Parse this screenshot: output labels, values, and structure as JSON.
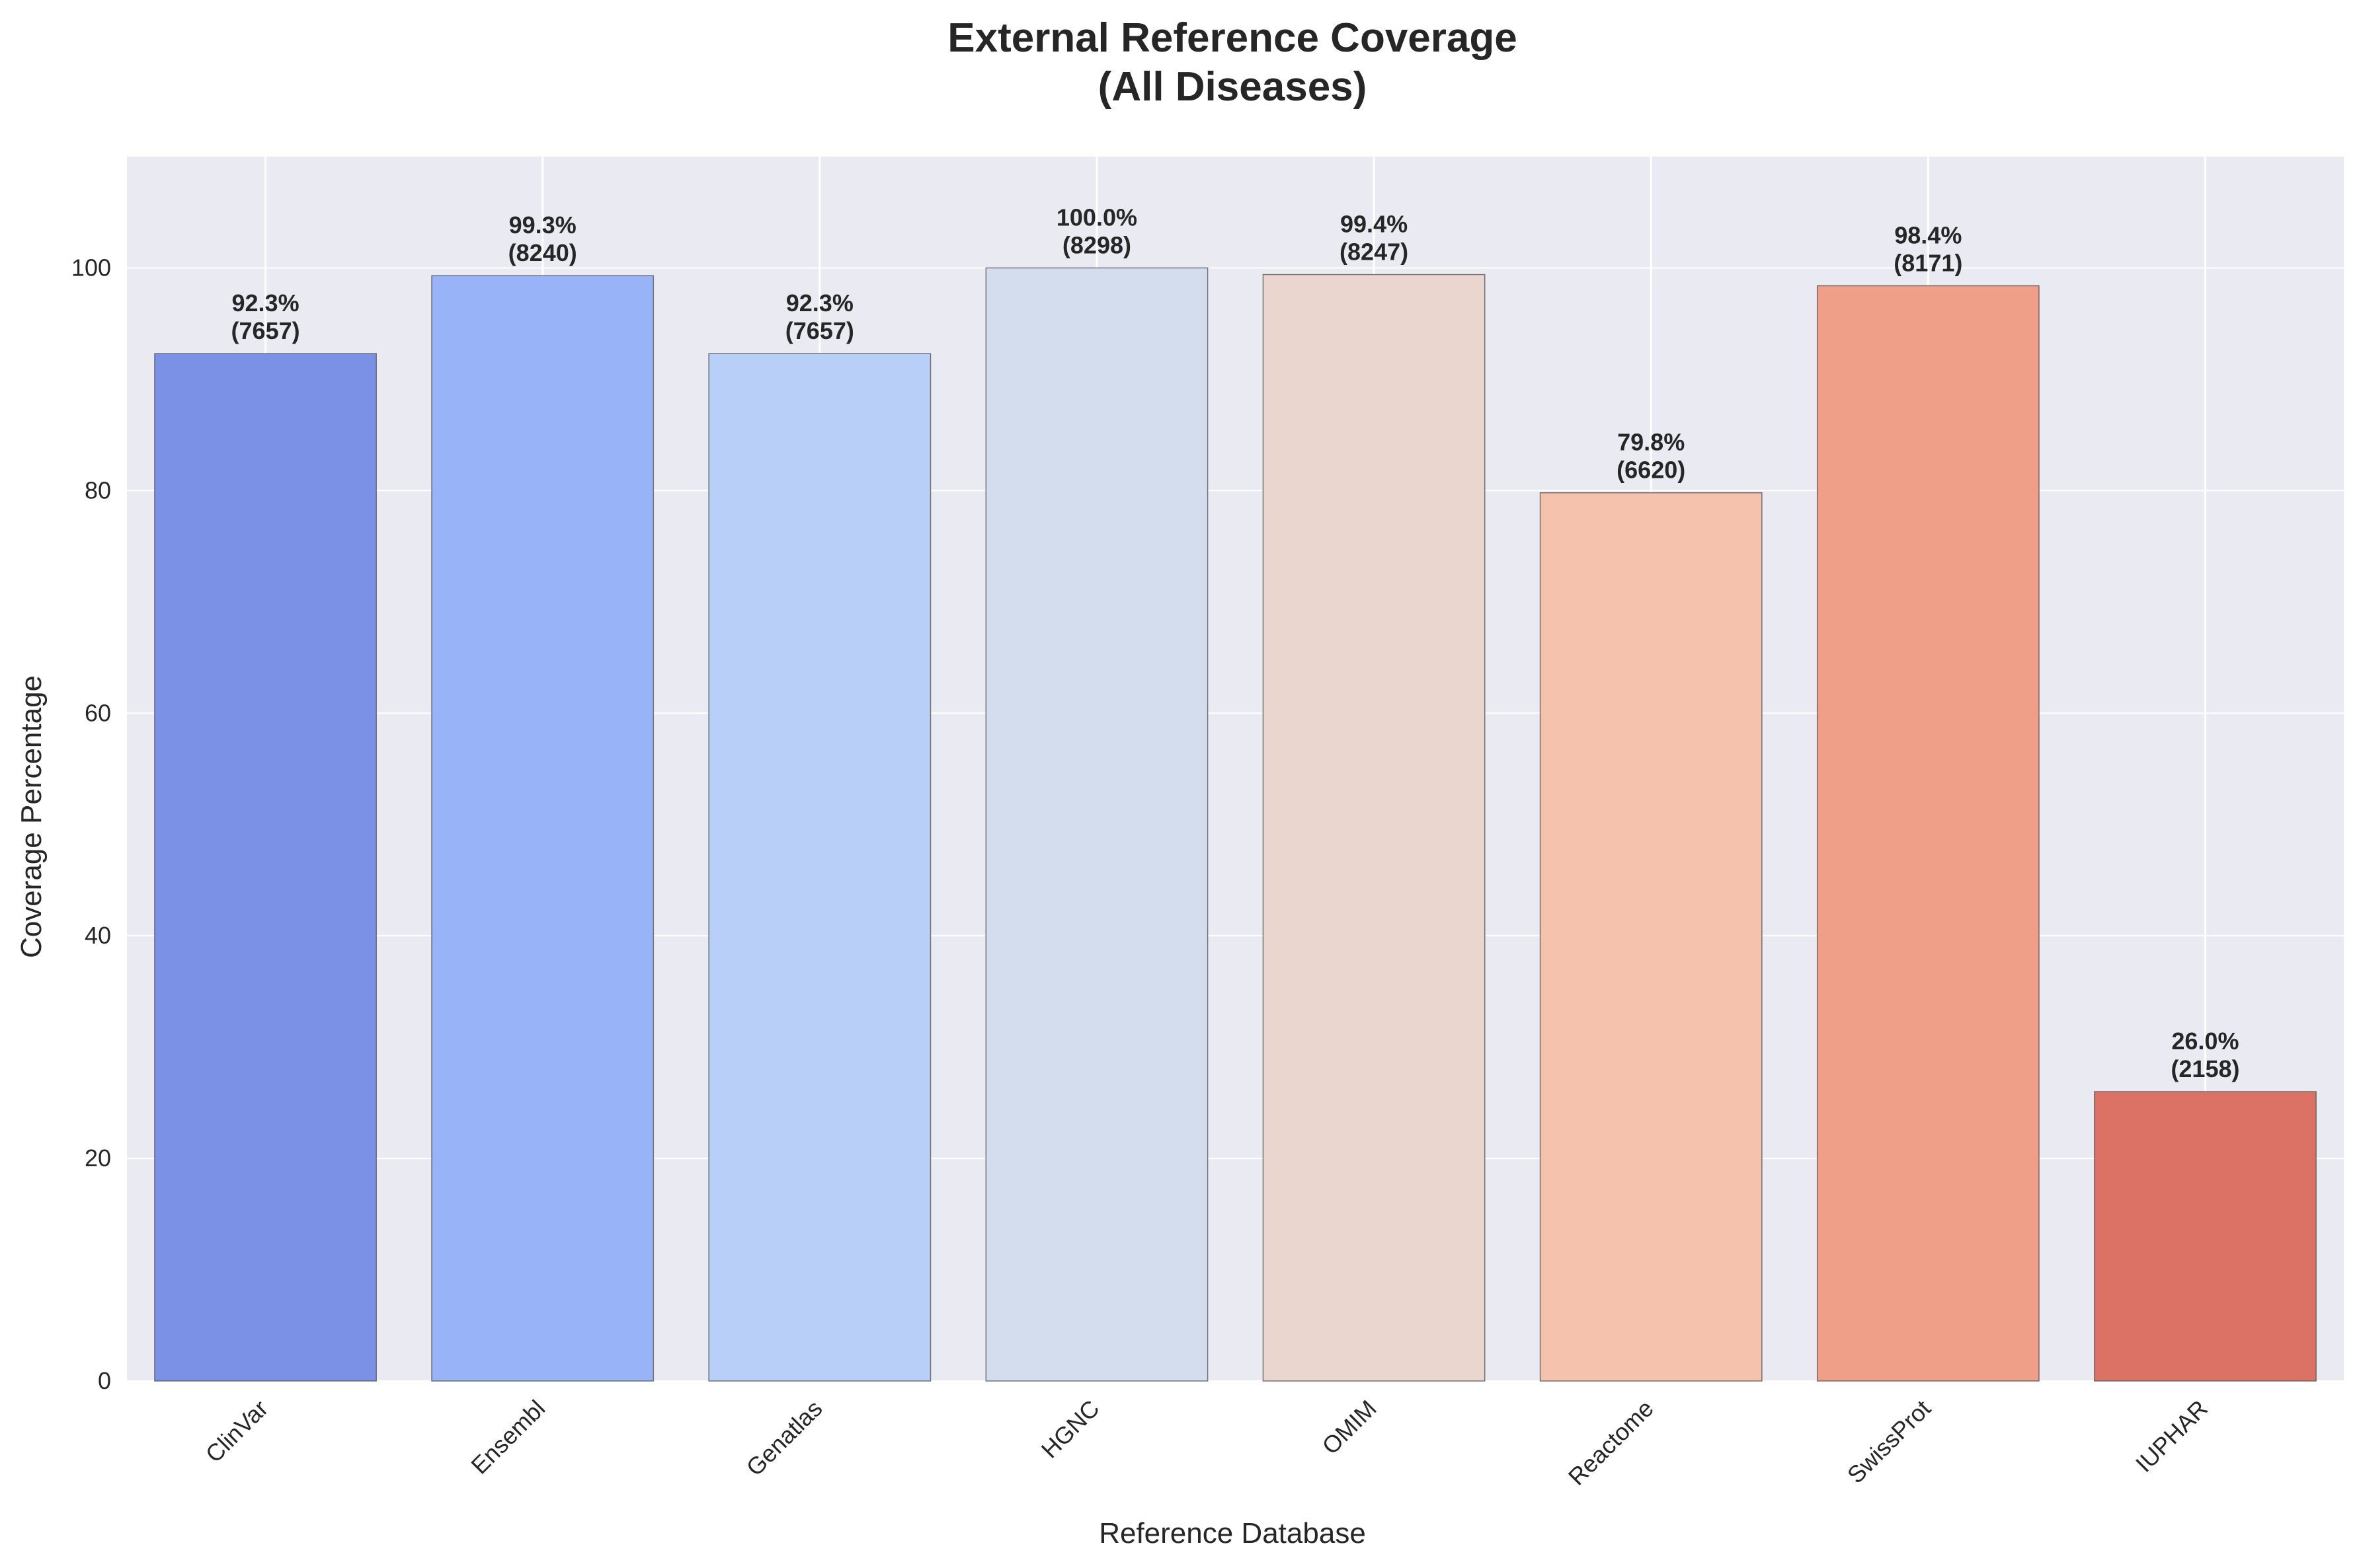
{
  "chart_data": {
    "type": "bar",
    "title_lines": [
      "External Reference Coverage",
      "(All Diseases)"
    ],
    "xlabel": "Reference Database",
    "ylabel": "Coverage Percentage",
    "ylim": [
      0,
      110
    ],
    "yticks": [
      0,
      20,
      40,
      60,
      80,
      100
    ],
    "grid": true,
    "categories": [
      "ClinVar",
      "Ensembl",
      "Genatlas",
      "HGNC",
      "OMIM",
      "Reactome",
      "SwissProt",
      "IUPHAR"
    ],
    "values": [
      92.3,
      99.3,
      92.3,
      100.0,
      99.4,
      79.8,
      98.4,
      26.0
    ],
    "counts": [
      7657,
      8240,
      7657,
      8298,
      8247,
      6620,
      8171,
      2158
    ],
    "value_labels": [
      "92.3%",
      "99.3%",
      "92.3%",
      "100.0%",
      "99.4%",
      "79.8%",
      "98.4%",
      "26.0%"
    ],
    "count_labels": [
      "(7657)",
      "(8240)",
      "(7657)",
      "(8298)",
      "(8247)",
      "(6620)",
      "(8171)",
      "(2158)"
    ],
    "colors": [
      "#7a91e6",
      "#98b3f8",
      "#b8cff8",
      "#d4ddee",
      "#ebd6cf",
      "#f5c3ad",
      "#ef9f87",
      "#dc7266"
    ],
    "background_color": "#eaeaf2",
    "grid_color": "#ffffff"
  }
}
